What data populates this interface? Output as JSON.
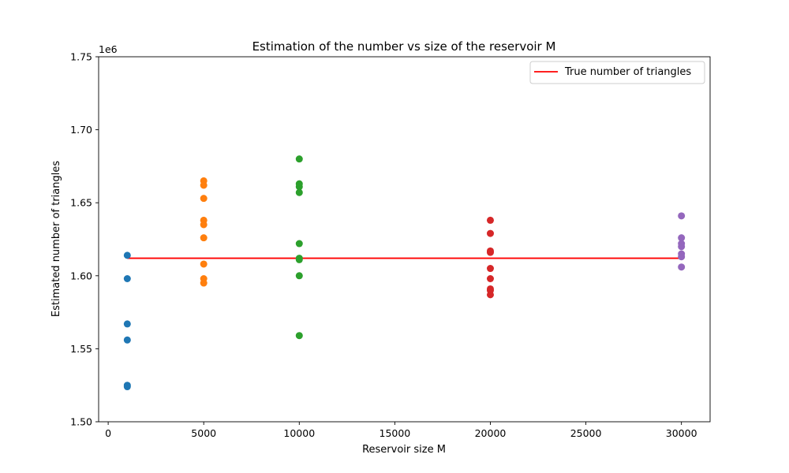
{
  "chart_data": {
    "type": "scatter",
    "title": "Estimation of the number vs size of the reservoir M",
    "xlabel": "Reservoir size M",
    "ylabel": "Estimated number of triangles",
    "y_offset_label": "1e6",
    "xlim": [
      -500,
      31500
    ],
    "ylim": [
      1.5,
      1.75
    ],
    "x_ticks": [
      0,
      5000,
      10000,
      15000,
      20000,
      25000,
      30000
    ],
    "y_ticks": [
      1.5,
      1.55,
      1.6,
      1.65,
      1.7,
      1.75
    ],
    "y_tick_labels": [
      "1.50",
      "1.55",
      "1.60",
      "1.65",
      "1.70",
      "1.75"
    ],
    "grid": false,
    "legend_position": "upper-right",
    "series": [
      {
        "x": 1000,
        "color": "#1f77b4",
        "values": [
          1.614,
          1.598,
          1.567,
          1.556,
          1.525,
          1.524
        ]
      },
      {
        "x": 5000,
        "color": "#ff7f0e",
        "values": [
          1.665,
          1.662,
          1.653,
          1.638,
          1.635,
          1.626,
          1.608,
          1.598,
          1.595
        ]
      },
      {
        "x": 10000,
        "color": "#2ca02c",
        "values": [
          1.68,
          1.663,
          1.661,
          1.657,
          1.622,
          1.612,
          1.611,
          1.6,
          1.559
        ]
      },
      {
        "x": 20000,
        "color": "#d62728",
        "values": [
          1.638,
          1.629,
          1.617,
          1.616,
          1.605,
          1.598,
          1.591,
          1.59,
          1.587
        ]
      },
      {
        "x": 30000,
        "color": "#9467bd",
        "values": [
          1.641,
          1.626,
          1.622,
          1.62,
          1.615,
          1.613,
          1.606
        ]
      }
    ],
    "reference_line": {
      "name": "True number of triangles",
      "color": "#ff0000",
      "x": [
        1000,
        30000
      ],
      "y": 1.612
    }
  }
}
